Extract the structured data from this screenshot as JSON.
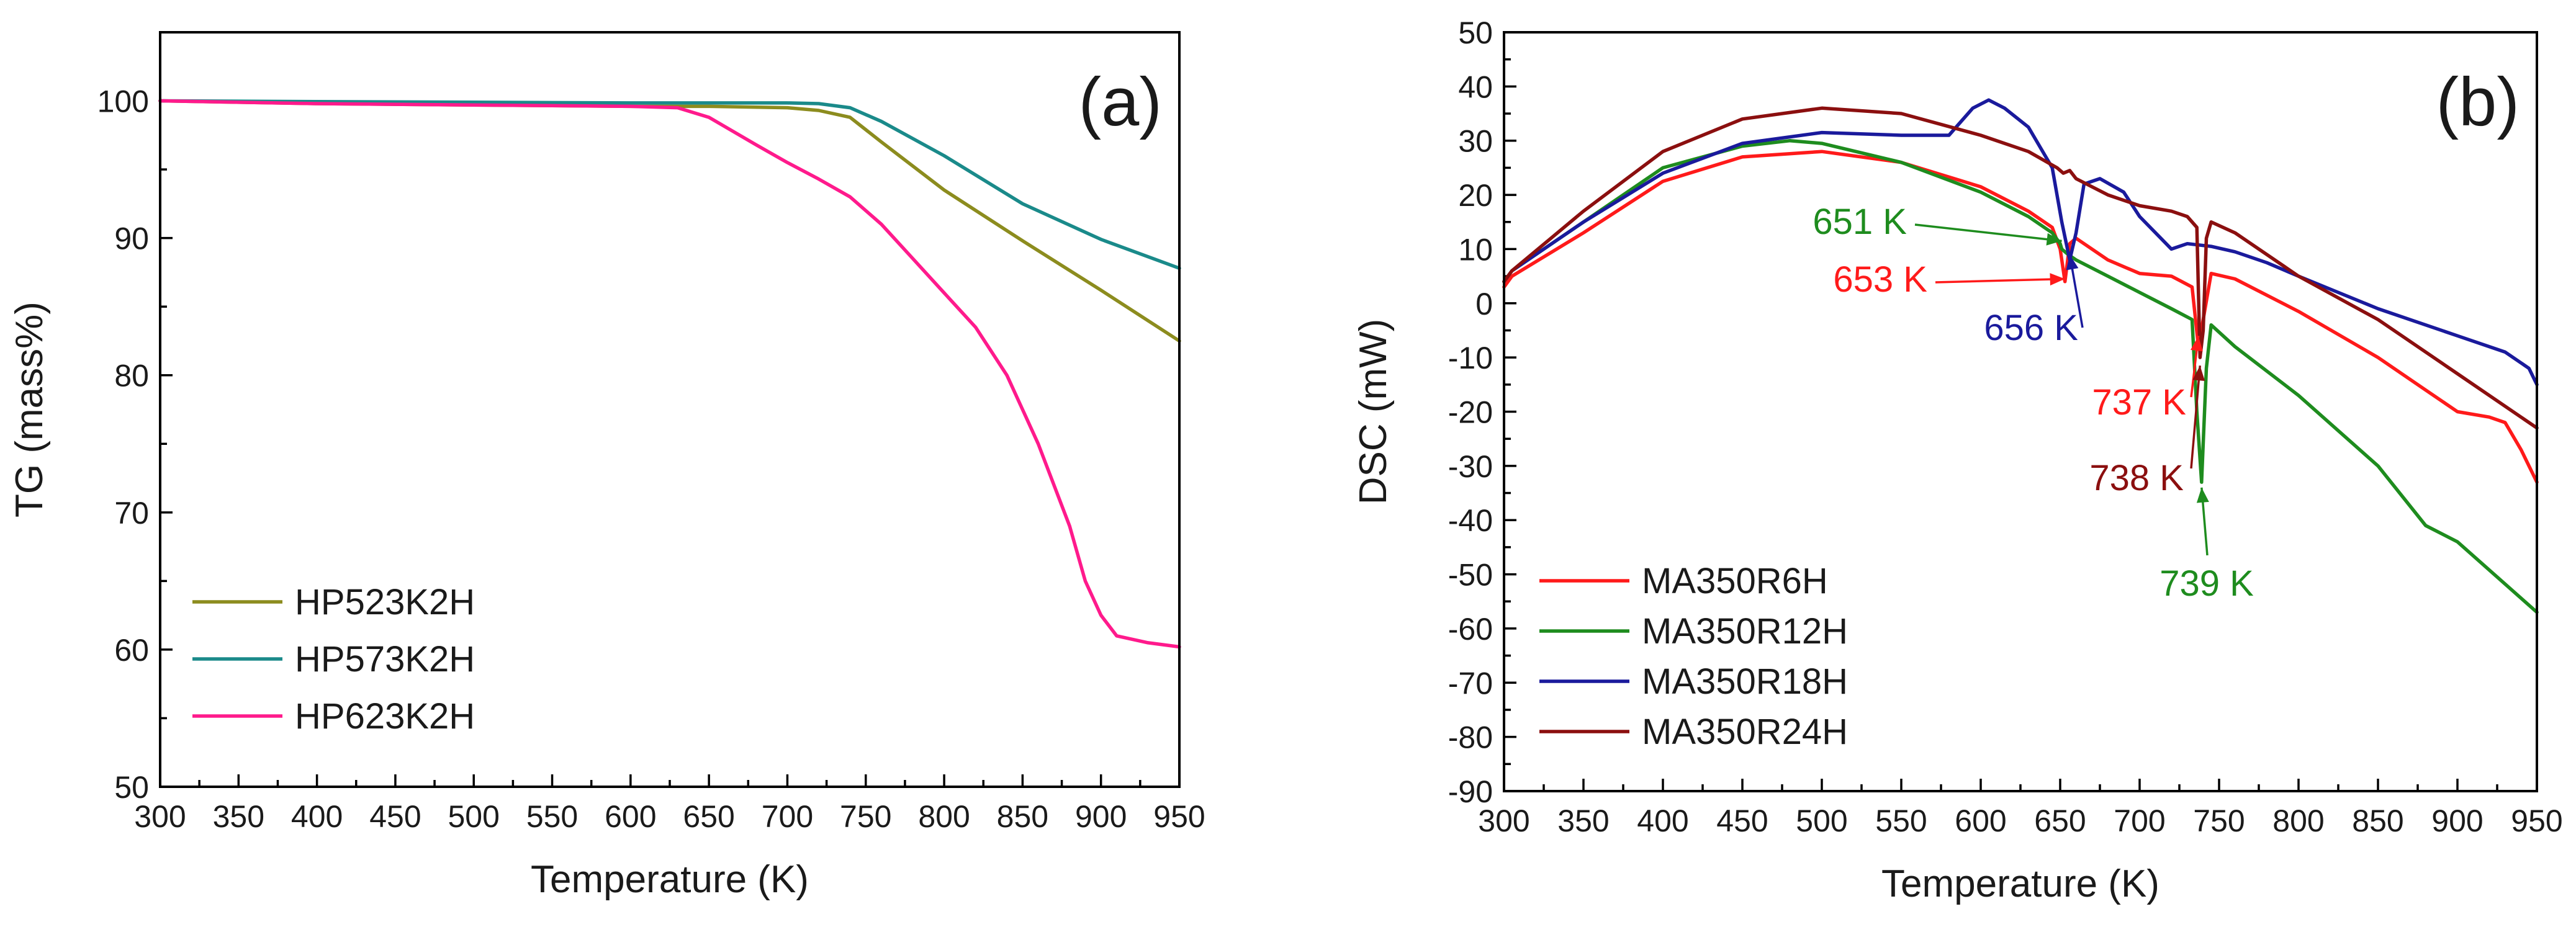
{
  "chart_data": [
    {
      "id": "a",
      "type": "line",
      "panel_label": "(a)",
      "xlabel": "Temperature (K)",
      "ylabel": "TG (mass%)",
      "xlim": [
        300,
        950
      ],
      "ylim": [
        50,
        105
      ],
      "xticks": [
        "300",
        "350",
        "400",
        "450",
        "500",
        "550",
        "600",
        "650",
        "700",
        "750",
        "800",
        "850",
        "900",
        "950"
      ],
      "yticks": [
        "50",
        "60",
        "70",
        "80",
        "90",
        "100"
      ],
      "legend_position": "bottom-left",
      "series": [
        {
          "name": "HP523K2H",
          "color": "#8c8c1e",
          "x": [
            300,
            400,
            500,
            600,
            650,
            700,
            720,
            740,
            760,
            800,
            850,
            900,
            950
          ],
          "y": [
            100,
            99.8,
            99.7,
            99.6,
            99.6,
            99.5,
            99.3,
            98.8,
            97.0,
            93.5,
            89.8,
            86.2,
            82.5
          ]
        },
        {
          "name": "HP573K2H",
          "color": "#1a8a8a",
          "x": [
            300,
            400,
            500,
            600,
            700,
            720,
            740,
            760,
            800,
            850,
            900,
            950
          ],
          "y": [
            100,
            99.95,
            99.9,
            99.85,
            99.85,
            99.8,
            99.5,
            98.5,
            96.0,
            92.5,
            89.9,
            87.8
          ]
        },
        {
          "name": "HP623K2H",
          "color": "#ff1a8c",
          "x": [
            300,
            400,
            500,
            600,
            630,
            650,
            680,
            700,
            720,
            740,
            760,
            780,
            800,
            820,
            840,
            860,
            880,
            890,
            900,
            910,
            930,
            950
          ],
          "y": [
            100,
            99.8,
            99.7,
            99.6,
            99.5,
            98.8,
            96.8,
            95.5,
            94.3,
            93.0,
            91.0,
            88.5,
            86.0,
            83.5,
            80.0,
            75.0,
            69.0,
            65.0,
            62.5,
            61.0,
            60.5,
            60.2
          ]
        }
      ]
    },
    {
      "id": "b",
      "type": "line",
      "panel_label": "(b)",
      "xlabel": "Temperature (K)",
      "ylabel": "DSC (mW)",
      "xlim": [
        300,
        950
      ],
      "ylim": [
        -90,
        50
      ],
      "xticks": [
        "300",
        "350",
        "400",
        "450",
        "500",
        "550",
        "600",
        "650",
        "700",
        "750",
        "800",
        "850",
        "900",
        "950"
      ],
      "yticks": [
        "50",
        "40",
        "30",
        "20",
        "10",
        "0",
        "-10",
        "-20",
        "-30",
        "-40",
        "-50",
        "-60",
        "-70",
        "-80",
        "-90"
      ],
      "legend_position": "bottom-left",
      "series": [
        {
          "name": "MA350R6H",
          "color": "#ff1a1a",
          "x": [
            300,
            305,
            350,
            400,
            450,
            500,
            550,
            600,
            630,
            645,
            650,
            653,
            656,
            660,
            680,
            700,
            720,
            733,
            737,
            740,
            745,
            760,
            800,
            850,
            880,
            900,
            920,
            930,
            940,
            950
          ],
          "y": [
            3,
            5,
            13,
            22.5,
            27,
            28,
            26,
            21.5,
            17,
            14,
            10,
            4,
            11,
            12,
            8,
            5.5,
            5,
            3,
            -8,
            -3,
            5.5,
            4.5,
            -1.5,
            -10,
            -16,
            -20,
            -21,
            -22,
            -27,
            -33
          ]
        },
        {
          "name": "MA350R12H",
          "color": "#1e8c1e",
          "x": [
            300,
            305,
            350,
            400,
            450,
            480,
            500,
            550,
            600,
            630,
            645,
            650,
            651,
            655,
            660,
            680,
            700,
            720,
            733,
            736,
            739,
            742,
            745,
            760,
            800,
            850,
            880,
            900,
            950
          ],
          "y": [
            4,
            6,
            15,
            25,
            29,
            30,
            29.5,
            26,
            20.5,
            16,
            13,
            11,
            10,
            9,
            8,
            5,
            2,
            -1,
            -3,
            -20,
            -33,
            -12,
            -4,
            -8,
            -17,
            -30,
            -41,
            -44,
            -57
          ]
        },
        {
          "name": "MA350R18H",
          "color": "#1a1a9c",
          "x": [
            300,
            305,
            350,
            400,
            450,
            500,
            550,
            580,
            595,
            605,
            615,
            630,
            645,
            651,
            656,
            660,
            665,
            675,
            690,
            700,
            720,
            730,
            745,
            760,
            780,
            800,
            850,
            900,
            930,
            945,
            950
          ],
          "y": [
            4,
            6,
            15,
            24,
            29.5,
            31.5,
            31,
            31,
            36,
            37.5,
            36,
            32.5,
            25,
            15,
            8,
            13,
            22,
            23,
            20.5,
            16,
            10,
            11,
            10.5,
            9.5,
            7.5,
            5,
            -1,
            -6,
            -9,
            -12,
            -15
          ]
        },
        {
          "name": "MA350R24H",
          "color": "#8b0f0f",
          "x": [
            300,
            305,
            350,
            400,
            450,
            500,
            550,
            600,
            630,
            648,
            652,
            656,
            660,
            680,
            700,
            720,
            730,
            736,
            738,
            740,
            742,
            745,
            760,
            800,
            850,
            900,
            950
          ],
          "y": [
            4,
            6,
            17,
            28,
            34,
            36,
            35,
            31,
            28,
            25,
            24,
            24.5,
            23,
            20,
            18,
            17,
            16,
            14,
            -10,
            -5,
            12,
            15,
            13,
            5,
            -3,
            -13,
            -23
          ]
        }
      ],
      "annotations": [
        {
          "text": "651 K",
          "color": "#1e8c1e",
          "arrow_to": [
            651,
            11.5
          ]
        },
        {
          "text": "653 K",
          "color": "#ff1a1a",
          "arrow_to": [
            653,
            4.5
          ]
        },
        {
          "text": "656 K",
          "color": "#1a1a9c",
          "arrow_to": [
            656,
            9
          ]
        },
        {
          "text": "737 K",
          "color": "#ff1a1a",
          "arrow_to": [
            737,
            -6
          ]
        },
        {
          "text": "738 K",
          "color": "#8b0f0f",
          "arrow_to": [
            738,
            -11.5
          ]
        },
        {
          "text": "739 K",
          "color": "#1e8c1e",
          "arrow_to": [
            739,
            -34
          ]
        }
      ]
    }
  ]
}
